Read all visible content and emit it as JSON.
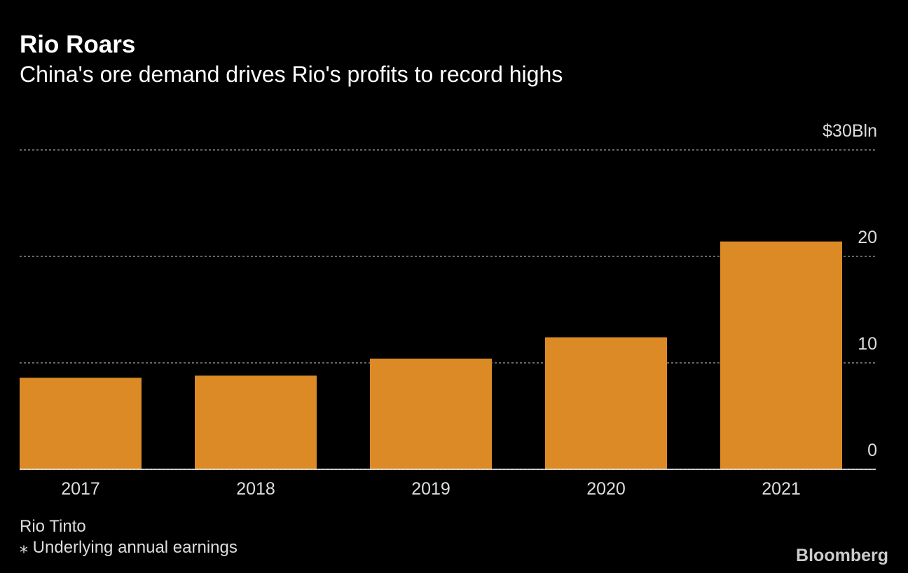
{
  "chart_data": {
    "type": "bar",
    "title": "Rio Roars",
    "subtitle": "China's ore demand drives Rio's profits to record highs",
    "categories": [
      "2017",
      "2018",
      "2019",
      "2020",
      "2021"
    ],
    "values": [
      8.6,
      8.8,
      10.4,
      12.4,
      21.4
    ],
    "color": "#dc8a26",
    "ylim": [
      0,
      30
    ],
    "yticks": [
      0,
      10,
      20,
      {
        "value": 30,
        "label": "$30Bln"
      }
    ],
    "grid": true,
    "source": "Rio Tinto",
    "note": "⁎ Underlying annual earnings",
    "brand": "Bloomberg"
  }
}
